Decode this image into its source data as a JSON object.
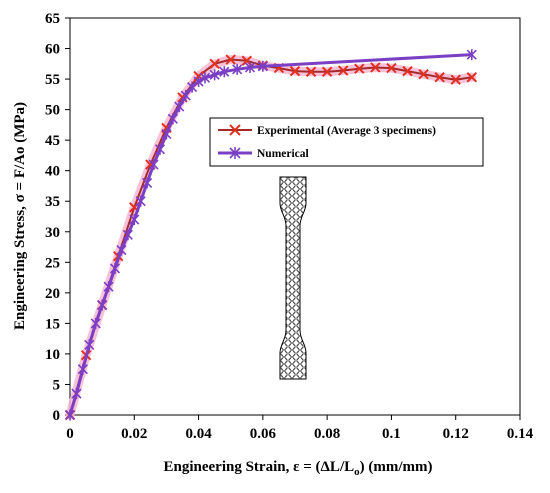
{
  "chart_data": {
    "type": "line",
    "title": "",
    "xlabel": "Engineering Strain, ε = (ΔL/L",
    "xlabel_sub": "o",
    "xlabel_tail": ") (mm/mm)",
    "ylabel": "Engineering Stress, σ = F/Ao (MPa)",
    "xlim": [
      0,
      0.14
    ],
    "ylim": [
      0,
      65
    ],
    "xticks": [
      0,
      0.02,
      0.04,
      0.06,
      0.08,
      0.1,
      0.12,
      0.14
    ],
    "xtick_labels": [
      "0",
      "0.02",
      "0.04",
      "0.06",
      "0.08",
      "0.1",
      "0.12",
      "0.14"
    ],
    "yticks": [
      0,
      5,
      10,
      15,
      20,
      25,
      30,
      35,
      40,
      45,
      50,
      55,
      60,
      65
    ],
    "ytick_labels": [
      "0",
      "5",
      "10",
      "15",
      "20",
      "25",
      "30",
      "35",
      "40",
      "45",
      "50",
      "55",
      "60",
      "65"
    ],
    "grid": false,
    "legend_position": "right-middle",
    "series": [
      {
        "name": "Experimental (Average 3 specimens)",
        "color": "#a52a2a",
        "marker": "x",
        "glow": "#f4b6d2",
        "x": [
          0,
          0.005,
          0.01,
          0.015,
          0.02,
          0.025,
          0.03,
          0.035,
          0.04,
          0.045,
          0.05,
          0.055,
          0.06,
          0.065,
          0.07,
          0.075,
          0.08,
          0.085,
          0.09,
          0.095,
          0.1,
          0.105,
          0.11,
          0.115,
          0.12,
          0.125
        ],
        "y": [
          0,
          9.8,
          18,
          26,
          34,
          41,
          47,
          52,
          55.5,
          57.5,
          58.2,
          58,
          57.2,
          56.8,
          56.3,
          56.2,
          56.2,
          56.4,
          56.7,
          56.9,
          56.8,
          56.3,
          55.8,
          55.3,
          54.9,
          55.3
        ]
      },
      {
        "name": "Numerical",
        "color": "#7b3fc4",
        "marker": "star",
        "x": [
          0,
          0.002,
          0.004,
          0.006,
          0.008,
          0.01,
          0.012,
          0.014,
          0.016,
          0.018,
          0.02,
          0.022,
          0.024,
          0.026,
          0.028,
          0.03,
          0.032,
          0.034,
          0.036,
          0.038,
          0.04,
          0.042,
          0.045,
          0.048,
          0.052,
          0.056,
          0.06,
          0.125
        ],
        "y": [
          0,
          3.5,
          7.5,
          11.5,
          15,
          18,
          21,
          24,
          27,
          29.5,
          32,
          35,
          38,
          41,
          43.5,
          46,
          48.5,
          50.5,
          52.3,
          53.7,
          54.6,
          55.2,
          55.7,
          56.2,
          56.6,
          56.9,
          57.1,
          59
        ]
      }
    ]
  }
}
